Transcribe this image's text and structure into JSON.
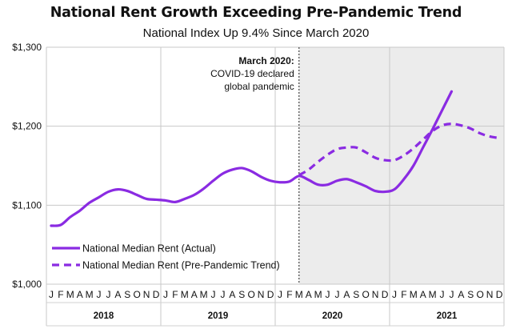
{
  "chart_data": {
    "type": "line",
    "title": "National Rent Growth Exceeding Pre-Pandemic Trend",
    "subtitle": "National Index Up 9.4% Since March 2020",
    "ylim": [
      1000,
      1300
    ],
    "yticks": [
      1000,
      1100,
      1200,
      1300
    ],
    "ytick_labels": [
      "$1,000",
      "$1,100",
      "$1,200",
      "$1,300"
    ],
    "month_letters": [
      "J",
      "F",
      "M",
      "A",
      "M",
      "J",
      "J",
      "A",
      "S",
      "O",
      "N",
      "D"
    ],
    "years": [
      "2018",
      "2019",
      "2020",
      "2021"
    ],
    "grid": true,
    "shaded_region": {
      "from": "2020-03",
      "to": "2021-12"
    },
    "annotation": {
      "at": "2020-03",
      "lines": [
        "March 2020:",
        "COVID-19 declared",
        "global pandemic"
      ]
    },
    "legend_position": "bottom-left",
    "series": [
      {
        "name": "National Median Rent (Actual)",
        "color": "#8a2be2",
        "style": "solid",
        "x": [
          "2018-01",
          "2018-02",
          "2018-03",
          "2018-04",
          "2018-05",
          "2018-06",
          "2018-07",
          "2018-08",
          "2018-09",
          "2018-10",
          "2018-11",
          "2018-12",
          "2019-01",
          "2019-02",
          "2019-03",
          "2019-04",
          "2019-05",
          "2019-06",
          "2019-07",
          "2019-08",
          "2019-09",
          "2019-10",
          "2019-11",
          "2019-12",
          "2020-01",
          "2020-02",
          "2020-03",
          "2020-04",
          "2020-05",
          "2020-06",
          "2020-07",
          "2020-08",
          "2020-09",
          "2020-10",
          "2020-11",
          "2020-12",
          "2021-01",
          "2021-02",
          "2021-03",
          "2021-04",
          "2021-05",
          "2021-06",
          "2021-07"
        ],
        "values": [
          1074,
          1075,
          1085,
          1093,
          1103,
          1110,
          1117,
          1120,
          1118,
          1113,
          1108,
          1107,
          1106,
          1104,
          1108,
          1113,
          1121,
          1131,
          1140,
          1145,
          1147,
          1143,
          1136,
          1131,
          1129,
          1130,
          1137,
          1132,
          1126,
          1126,
          1131,
          1133,
          1129,
          1124,
          1118,
          1117,
          1120,
          1133,
          1150,
          1173,
          1196,
          1220,
          1244
        ]
      },
      {
        "name": "National Median Rent (Pre-Pandemic Trend)",
        "color": "#8a2be2",
        "style": "dashed",
        "x": [
          "2020-03",
          "2020-04",
          "2020-05",
          "2020-06",
          "2020-07",
          "2020-08",
          "2020-09",
          "2020-10",
          "2020-11",
          "2020-12",
          "2021-01",
          "2021-02",
          "2021-03",
          "2021-04",
          "2021-05",
          "2021-06",
          "2021-07",
          "2021-08",
          "2021-09",
          "2021-10",
          "2021-11",
          "2021-12"
        ],
        "values": [
          1138,
          1145,
          1155,
          1164,
          1171,
          1173,
          1173,
          1167,
          1160,
          1157,
          1157,
          1163,
          1172,
          1183,
          1194,
          1201,
          1203,
          1201,
          1197,
          1191,
          1187,
          1185
        ]
      }
    ]
  }
}
